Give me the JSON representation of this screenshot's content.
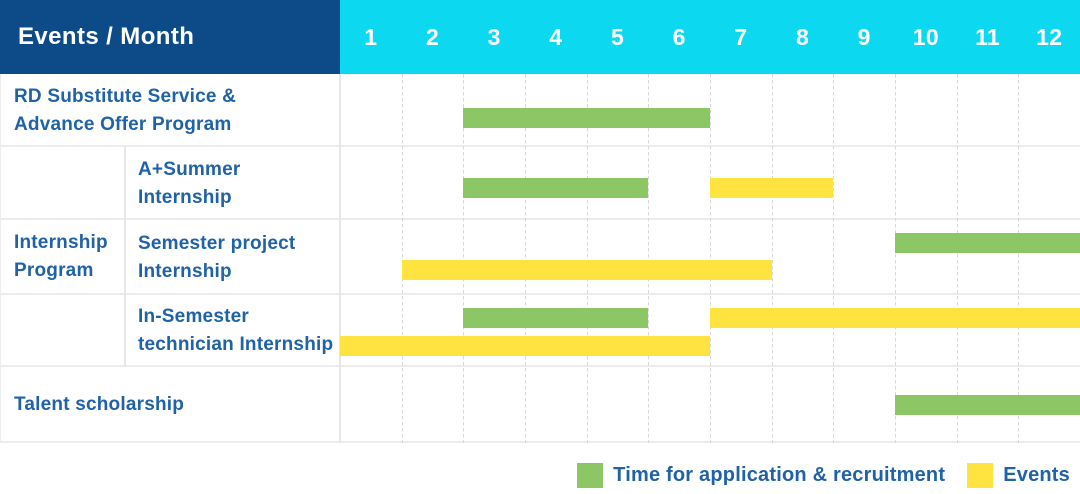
{
  "title": "Events / Month",
  "palette": {
    "header_bg": "#0c4b87",
    "months_bg": "#0cd8ef",
    "application": "#8cc665",
    "event": "#ffe441",
    "label_text": "#2062a8"
  },
  "chart_data": {
    "type": "bar",
    "subtype": "gantt-timeline",
    "x_unit": "month",
    "xlim": [
      1,
      12
    ],
    "grid": "vertical-dashed",
    "corner_header": "Events / Month",
    "months": [
      "1",
      "2",
      "3",
      "4",
      "5",
      "6",
      "7",
      "8",
      "9",
      "10",
      "11",
      "12"
    ],
    "row_group": {
      "label": "Internship Program",
      "lines": [
        "Internship",
        "Program"
      ],
      "covers_rows": [
        1,
        2,
        3
      ]
    },
    "rows": [
      {
        "label": "RD Substitute Service & Advance Offer Program",
        "lines": [
          "RD Substitute Service &",
          "Advance Offer Program"
        ],
        "bars": [
          {
            "kind": "application",
            "from": 3,
            "to": 6,
            "line": 0
          }
        ]
      },
      {
        "label": "A+Summer Internship",
        "lines": [
          "A+Summer",
          "Internship"
        ],
        "bars": [
          {
            "kind": "application",
            "from": 3,
            "to": 5,
            "line": 0
          },
          {
            "kind": "event",
            "from": 7,
            "to": 8,
            "line": 0
          }
        ]
      },
      {
        "label": "Semester project Internship",
        "lines": [
          "Semester project",
          "Internship"
        ],
        "bars": [
          {
            "kind": "application",
            "from": 10,
            "to": 12,
            "line": 0
          },
          {
            "kind": "event",
            "from": 2,
            "to": 7,
            "line": 1
          }
        ]
      },
      {
        "label": "In-Semester technician Internship",
        "lines": [
          "In-Semester",
          "technician Internship"
        ],
        "bars": [
          {
            "kind": "application",
            "from": 3,
            "to": 5,
            "line": 0
          },
          {
            "kind": "event",
            "from": 7,
            "to": 12,
            "line": 0
          },
          {
            "kind": "event",
            "from": 1,
            "to": 6,
            "line": 1
          }
        ]
      },
      {
        "label": "Talent scholarship",
        "lines": [
          "Talent scholarship"
        ],
        "bars": [
          {
            "kind": "application",
            "from": 10,
            "to": 12,
            "line": 0
          }
        ]
      }
    ],
    "legend": [
      {
        "kind": "application",
        "label": "Time for application & recruitment"
      },
      {
        "kind": "event",
        "label": "Events"
      }
    ]
  }
}
